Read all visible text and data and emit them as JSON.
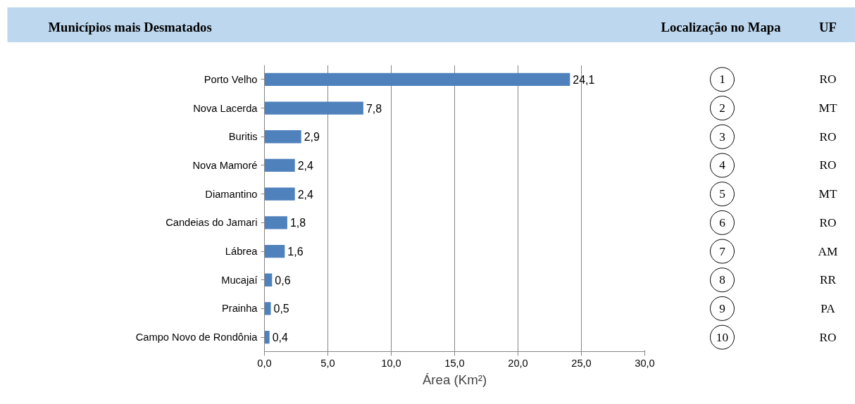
{
  "chart_data": {
    "type": "bar",
    "orientation": "horizontal",
    "title": "Municípios mais Desmatados",
    "xlabel": "Área (Km²)",
    "categories": [
      "Porto Velho",
      "Nova Lacerda",
      "Buritis",
      "Nova Mamoré",
      "Diamantino",
      "Candeias do Jamari",
      "Lábrea",
      "Mucajaí",
      "Prainha",
      "Campo Novo de Rondônia"
    ],
    "values": [
      24.1,
      7.8,
      2.9,
      2.4,
      2.4,
      1.8,
      1.6,
      0.6,
      0.5,
      0.4
    ],
    "value_labels": [
      "24,1",
      "7,8",
      "2,9",
      "2,4",
      "2,4",
      "1,8",
      "1,6",
      "0,6",
      "0,5",
      "0,4"
    ],
    "color": "#4f81bd",
    "xlim": [
      0,
      30
    ],
    "xticks": [
      {
        "value": 0,
        "label": "0,0"
      },
      {
        "value": 5,
        "label": "5,0"
      },
      {
        "value": 10,
        "label": "10,0"
      },
      {
        "value": 15,
        "label": "15,0"
      },
      {
        "value": 20,
        "label": "20,0"
      },
      {
        "value": 25,
        "label": "25,0"
      },
      {
        "value": 30,
        "label": "30,0"
      }
    ],
    "grid": "x",
    "annotations": [
      "Localização no Mapa",
      "UF",
      "1",
      "RO",
      "2",
      "MT",
      "3",
      "RO",
      "4",
      "RO",
      "5",
      "MT",
      "6",
      "RO",
      "7",
      "AM",
      "8",
      "RR",
      "9",
      "PA",
      "10",
      "RO"
    ]
  }
}
